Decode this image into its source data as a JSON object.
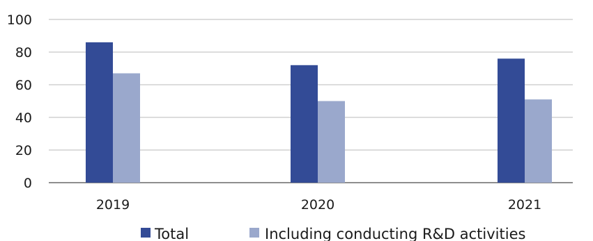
{
  "chart_data": {
    "type": "bar",
    "title": "",
    "xlabel": "",
    "ylabel": "",
    "categories": [
      "2019",
      "2020",
      "2021"
    ],
    "series": [
      {
        "name": "Total",
        "values": [
          86,
          72,
          76
        ],
        "color": "#334b96"
      },
      {
        "name": "Including conducting R&D activities",
        "values": [
          67,
          50,
          51
        ],
        "color": "#9aa8cc"
      }
    ],
    "ylim": [
      0,
      100
    ],
    "yticks": [
      0,
      20,
      40,
      60,
      80,
      100
    ],
    "grid": true,
    "legend_position": "bottom"
  }
}
